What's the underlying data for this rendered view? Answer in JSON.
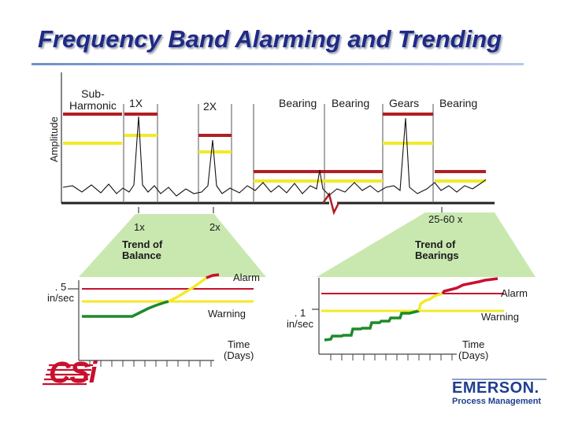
{
  "slide": {
    "title": "Frequency Band Alarming and Trending",
    "brand_color": "#1f2a86"
  },
  "spectrum": {
    "y_axis_label": "Amplitude",
    "band_labels": {
      "subharmonic": "Sub-\nHarmonic",
      "one_x": "1X",
      "two_x": "2X",
      "bearing_1": "Bearing",
      "bearing_2": "Bearing",
      "gears": "Gears",
      "bearing_3": "Bearing"
    },
    "axis_markers": {
      "one_x": "1x",
      "two_x": "2x",
      "range": "25-60 x"
    },
    "colors": {
      "alarm": "#b01e23",
      "warning": "#f2ea2a",
      "trace": "#111111"
    }
  },
  "trend_balance": {
    "label": "Trend of\nBalance",
    "y_value": ". 5\nin/sec",
    "alarm_label": "Alarm",
    "warning_label": "Warning",
    "x_label": "Time\n(Days)"
  },
  "trend_bearings": {
    "label": "Trend of\nBearings",
    "y_value": ". 1\nin/sec",
    "alarm_label": "Alarm",
    "warning_label": "Warning",
    "x_label": "Time\n(Days)"
  },
  "colors": {
    "callout_fill": "#c9e8b0",
    "good": "#1e8a2a",
    "warning": "#f2ea2a",
    "alarm": "#c8102e"
  },
  "logos": {
    "csi": "CSi",
    "emerson": "EMERSON.",
    "emerson_sub": "Process Management"
  }
}
